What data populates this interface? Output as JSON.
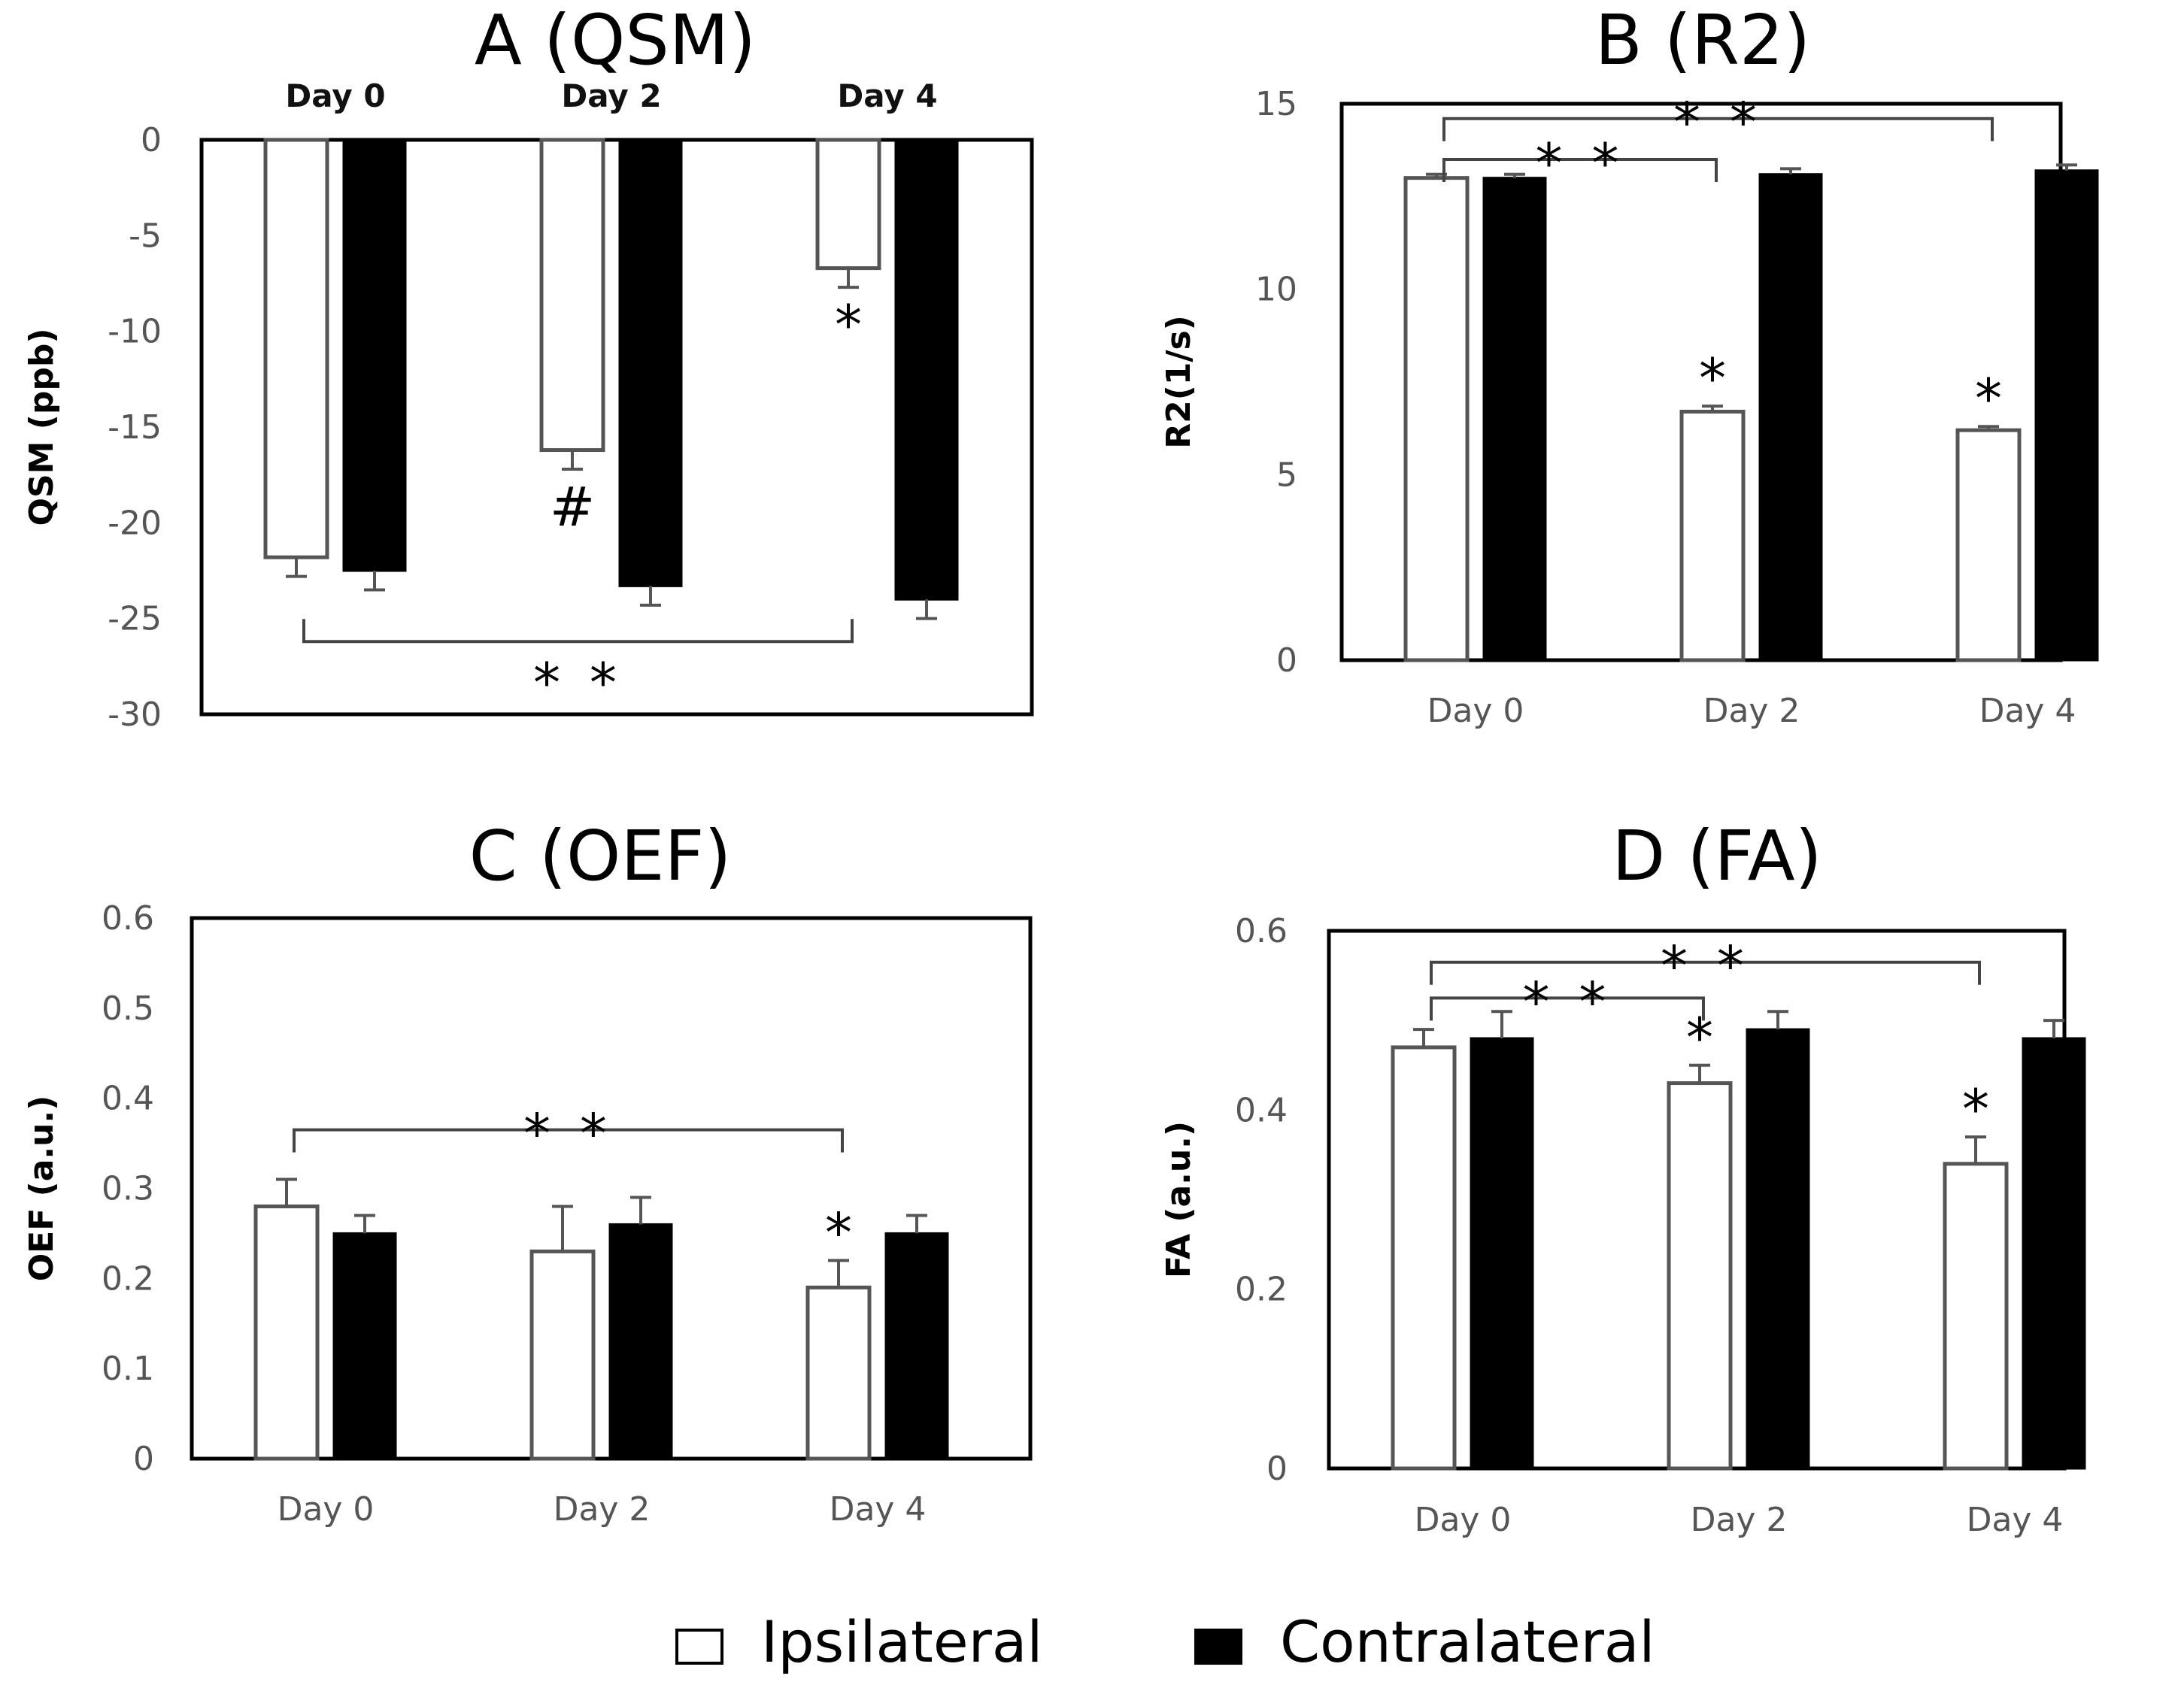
{
  "chart_data": [
    {
      "panel": "A",
      "type": "bar",
      "title": "A (QSM)",
      "ylabel": "QSM (ppb)",
      "xlabel": "",
      "ylim": [
        -30,
        0
      ],
      "yticks": [
        "0",
        "-5",
        "-10",
        "-15",
        "-20",
        "-25",
        "-30"
      ],
      "categories": [
        "Day 0",
        "Day 2",
        "Day 4"
      ],
      "category_axis_position": "top",
      "series": [
        {
          "name": "Ipsilateral",
          "color": "#ffffff",
          "values": [
            -21.8,
            -16.2,
            -6.7
          ],
          "errors": [
            1.0,
            1.0,
            1.0
          ]
        },
        {
          "name": "Contralateral",
          "color": "#000000",
          "values": [
            -22.5,
            -23.3,
            -24.0
          ],
          "errors": [
            1.0,
            1.0,
            1.0
          ]
        }
      ],
      "markers": [
        {
          "category": 1,
          "series": 0,
          "symbol": "#"
        },
        {
          "category": 2,
          "series": 0,
          "symbol": "*"
        }
      ],
      "brackets": [
        {
          "from": 0,
          "to": 2,
          "y": -26.2,
          "label": "**",
          "direction": "up"
        }
      ]
    },
    {
      "panel": "B",
      "type": "bar",
      "title": "B (R2)",
      "ylabel": "R2(1/s)",
      "xlabel": "",
      "ylim": [
        0,
        15
      ],
      "yticks": [
        "0",
        "5",
        "10",
        "15"
      ],
      "categories": [
        "Day 0",
        "Day 2",
        "Day 4"
      ],
      "category_axis_position": "bottom",
      "series": [
        {
          "name": "Ipsilateral",
          "color": "#ffffff",
          "values": [
            13.0,
            6.7,
            6.2
          ],
          "errors": [
            0.1,
            0.15,
            0.1
          ]
        },
        {
          "name": "Contralateral",
          "color": "#000000",
          "values": [
            13.0,
            13.1,
            13.2
          ],
          "errors": [
            0.1,
            0.15,
            0.15
          ]
        }
      ],
      "markers": [
        {
          "category": 1,
          "series": 0,
          "symbol": "*"
        },
        {
          "category": 2,
          "series": 0,
          "symbol": "*"
        }
      ],
      "brackets": [
        {
          "from": 0,
          "to": 1,
          "y": 13.5,
          "label": "**",
          "direction": "down"
        },
        {
          "from": 0,
          "to": 2,
          "y": 14.6,
          "label": "**",
          "direction": "down"
        }
      ]
    },
    {
      "panel": "C",
      "type": "bar",
      "title": "C (OEF)",
      "ylabel": "OEF (a.u.)",
      "xlabel": "",
      "ylim": [
        0,
        0.6
      ],
      "yticks": [
        "0",
        "0.1",
        "0.2",
        "0.3",
        "0.4",
        "0.5",
        "0.6"
      ],
      "categories": [
        "Day 0",
        "Day 2",
        "Day 4"
      ],
      "category_axis_position": "bottom",
      "series": [
        {
          "name": "Ipsilateral",
          "color": "#ffffff",
          "values": [
            0.28,
            0.23,
            0.19
          ],
          "errors": [
            0.03,
            0.05,
            0.03
          ]
        },
        {
          "name": "Contralateral",
          "color": "#000000",
          "values": [
            0.25,
            0.26,
            0.25
          ],
          "errors": [
            0.02,
            0.03,
            0.02
          ]
        }
      ],
      "markers": [
        {
          "category": 2,
          "series": 0,
          "symbol": "*"
        }
      ],
      "brackets": [
        {
          "from": 0,
          "to": 2,
          "y": 0.365,
          "label": "**",
          "direction": "down"
        }
      ]
    },
    {
      "panel": "D",
      "type": "bar",
      "title": "D (FA)",
      "ylabel": "FA (a.u.)",
      "xlabel": "",
      "ylim": [
        0,
        0.6
      ],
      "yticks": [
        "0",
        "0.2",
        "0.4",
        "0.6"
      ],
      "categories": [
        "Day 0",
        "Day 2",
        "Day 4"
      ],
      "category_axis_position": "bottom",
      "series": [
        {
          "name": "Ipsilateral",
          "color": "#ffffff",
          "values": [
            0.47,
            0.43,
            0.34
          ],
          "errors": [
            0.02,
            0.02,
            0.03
          ]
        },
        {
          "name": "Contralateral",
          "color": "#000000",
          "values": [
            0.48,
            0.49,
            0.48
          ],
          "errors": [
            0.03,
            0.02,
            0.02
          ]
        }
      ],
      "markers": [
        {
          "category": 1,
          "series": 0,
          "symbol": "*"
        },
        {
          "category": 2,
          "series": 0,
          "symbol": "*"
        }
      ],
      "brackets": [
        {
          "from": 0,
          "to": 1,
          "y": 0.525,
          "label": "**",
          "direction": "down"
        },
        {
          "from": 0,
          "to": 2,
          "y": 0.565,
          "label": "**",
          "direction": "down"
        }
      ]
    }
  ],
  "legend": {
    "items": [
      {
        "label": "Ipsilateral",
        "color": "#ffffff"
      },
      {
        "label": "Contralateral",
        "color": "#000000"
      }
    ],
    "position": "bottom-center"
  }
}
